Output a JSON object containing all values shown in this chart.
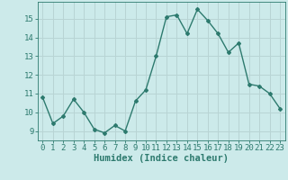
{
  "x": [
    0,
    1,
    2,
    3,
    4,
    5,
    6,
    7,
    8,
    9,
    10,
    11,
    12,
    13,
    14,
    15,
    16,
    17,
    18,
    19,
    20,
    21,
    22,
    23
  ],
  "y": [
    10.8,
    9.4,
    9.8,
    10.7,
    10.0,
    9.1,
    8.9,
    9.3,
    9.0,
    10.6,
    11.2,
    13.0,
    15.1,
    15.2,
    14.2,
    15.5,
    14.9,
    14.2,
    13.2,
    13.7,
    11.5,
    11.4,
    11.0,
    10.2
  ],
  "line_color": "#2d7a6e",
  "bg_color": "#cceaea",
  "grid_color": "#b8d4d4",
  "xlabel": "Humidex (Indice chaleur)",
  "ylim": [
    8.5,
    15.9
  ],
  "xlim": [
    -0.5,
    23.5
  ],
  "yticks": [
    9,
    10,
    11,
    12,
    13,
    14,
    15
  ],
  "xticks": [
    0,
    1,
    2,
    3,
    4,
    5,
    6,
    7,
    8,
    9,
    10,
    11,
    12,
    13,
    14,
    15,
    16,
    17,
    18,
    19,
    20,
    21,
    22,
    23
  ],
  "marker": "D",
  "markersize": 2.0,
  "linewidth": 1.0,
  "xlabel_fontsize": 7.5,
  "tick_fontsize": 6.5
}
